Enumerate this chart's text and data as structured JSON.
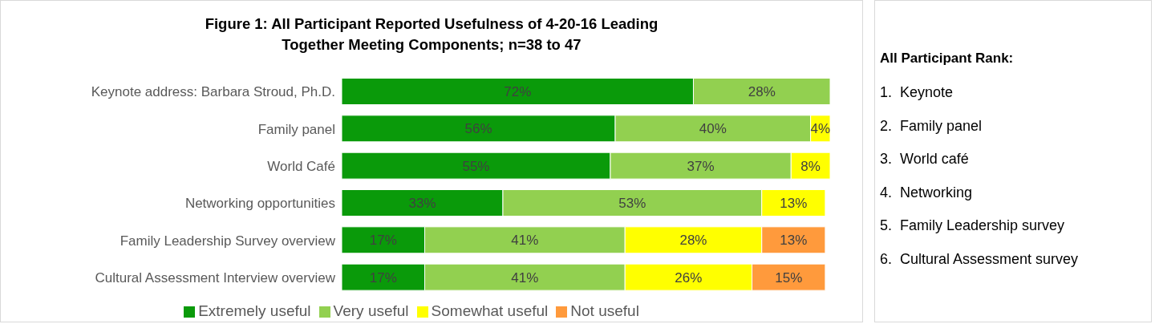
{
  "chart_data": [
    {
      "type": "bar",
      "orientation": "horizontal",
      "stacked": true,
      "title": "Figure 1: All Participant Reported Usefulness of 4-20-16 Leading Together Meeting Components; n=38 to 47",
      "categories": [
        "Keynote address: Barbara Stroud, Ph.D.",
        "Family panel",
        "World Café",
        "Networking opportunities",
        "Family Leadership Survey overview",
        "Cultural Assessment Interview overview"
      ],
      "xlim": [
        0,
        100
      ],
      "tick_labels": "y",
      "legend": "bottom",
      "series": [
        {
          "name": "Extremely useful",
          "color": "#0a9a0a",
          "values": [
            72,
            56,
            55,
            33,
            17,
            17
          ],
          "value_labels": [
            "72%",
            "56%",
            "55%",
            "33%",
            "17%",
            "17%"
          ]
        },
        {
          "name": "Very useful",
          "color": "#92d050",
          "values": [
            28,
            40,
            37,
            53,
            41,
            41
          ],
          "value_labels": [
            "28%",
            "40%",
            "37%",
            "53%",
            "41%",
            "41%"
          ]
        },
        {
          "name": "Somewhat useful",
          "color": "#ffff00",
          "values": [
            null,
            4,
            8,
            13,
            28,
            26
          ],
          "value_labels": [
            null,
            "4%",
            "8%",
            "13%",
            "28%",
            "26%"
          ]
        },
        {
          "name": "Not useful",
          "color": "#ff9a3c",
          "values": [
            null,
            null,
            null,
            null,
            13,
            15
          ],
          "value_labels": [
            null,
            null,
            null,
            null,
            "13%",
            "15%"
          ]
        }
      ]
    },
    {
      "type": "other",
      "title": "All Participant Rank:",
      "annotations": [
        "1.  Keynote",
        "2.  Family panel",
        "3.  World café",
        "4.  Networking",
        "5.  Family Leadership survey",
        "6.  Cultural Assessment survey"
      ]
    }
  ]
}
